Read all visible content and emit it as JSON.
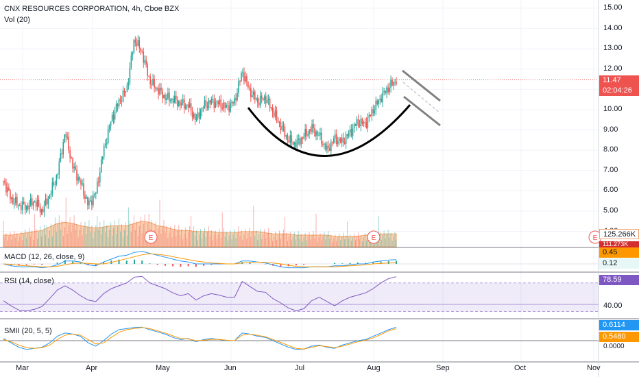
{
  "header": {
    "title": "CNX RESOURCES CORPORATION, 4h, Cboe BZX",
    "volume_label": "Vol (20)"
  },
  "price_axis": {
    "ticks": [
      "15.00",
      "14.00",
      "13.00",
      "12.00",
      "11.00",
      "10.00",
      "9.00",
      "8.00",
      "7.00",
      "6.00",
      "5.00",
      "4.00"
    ]
  },
  "tags": {
    "last_price": "11.47",
    "countdown": "02:04:26",
    "volume_value": "125.266K",
    "volume_ma": "111.273K",
    "macd_value": "0.45",
    "macd_signal": "0.12",
    "rsi_value": "78.59",
    "smii_value": "0.6114",
    "smii_signal": "0.5480"
  },
  "indicators": {
    "macd_label": "MACD (12, 26, close, 9)",
    "rsi_label": "RSI (14, close)",
    "rsi_tick": "40.00",
    "smii_label": "SMII (20, 5, 5)",
    "smii_tick": "0.0000"
  },
  "time_axis": {
    "labels": [
      "Mar",
      "Apr",
      "May",
      "Jun",
      "Jul",
      "Aug",
      "Sep",
      "Oct",
      "Nov"
    ]
  },
  "events": [
    "E",
    "E",
    "E"
  ],
  "colors": {
    "up": "#26a69a",
    "down": "#ef5350",
    "macd": "#2196f3",
    "signal": "#ff9800",
    "rsi": "#7e57c2",
    "price_line": "#ef5350"
  },
  "chart_data": {
    "type": "candlestick",
    "title": "CNX RESOURCES CORPORATION, 4h, Cboe BZX",
    "ylim": [
      4.0,
      15.0
    ],
    "x_range": [
      "Mar",
      "Nov"
    ],
    "last_price": 11.47,
    "close_series": [
      {
        "date": "Feb 24",
        "close": 6.5
      },
      {
        "date": "Feb 28",
        "close": 5.6
      },
      {
        "date": "Mar 3",
        "close": 5.3
      },
      {
        "date": "Mar 7",
        "close": 5.2
      },
      {
        "date": "Mar 10",
        "close": 5.5
      },
      {
        "date": "Mar 13",
        "close": 5.0
      },
      {
        "date": "Mar 16",
        "close": 5.8
      },
      {
        "date": "Mar 19",
        "close": 6.8
      },
      {
        "date": "Mar 21",
        "close": 8.9
      },
      {
        "date": "Mar 24",
        "close": 7.2
      },
      {
        "date": "Mar 26",
        "close": 6.4
      },
      {
        "date": "Mar 29",
        "close": 5.3
      },
      {
        "date": "Apr 1",
        "close": 5.9
      },
      {
        "date": "Apr 4",
        "close": 8.0
      },
      {
        "date": "Apr 8",
        "close": 9.5
      },
      {
        "date": "Apr 11",
        "close": 10.4
      },
      {
        "date": "Apr 14",
        "close": 11.0
      },
      {
        "date": "Apr 17",
        "close": 13.5
      },
      {
        "date": "Apr 19",
        "close": 12.8
      },
      {
        "date": "Apr 21",
        "close": 11.4
      },
      {
        "date": "Apr 23",
        "close": 11.0
      },
      {
        "date": "Apr 28",
        "close": 10.6
      },
      {
        "date": "May 1",
        "close": 10.5
      },
      {
        "date": "May 5",
        "close": 10.3
      },
      {
        "date": "May 11",
        "close": 10.2
      },
      {
        "date": "May 14",
        "close": 9.5
      },
      {
        "date": "May 18",
        "close": 10.2
      },
      {
        "date": "May 22",
        "close": 10.4
      },
      {
        "date": "May 26",
        "close": 10.3
      },
      {
        "date": "May 30",
        "close": 10.1
      },
      {
        "date": "Jun 3",
        "close": 10.4
      },
      {
        "date": "Jun 7",
        "close": 11.9
      },
      {
        "date": "Jun 10",
        "close": 10.9
      },
      {
        "date": "Jun 14",
        "close": 10.4
      },
      {
        "date": "Jun 18",
        "close": 10.6
      },
      {
        "date": "Jun 21",
        "close": 9.9
      },
      {
        "date": "Jun 24",
        "close": 9.2
      },
      {
        "date": "Jun 28",
        "close": 8.5
      },
      {
        "date": "Jul 2",
        "close": 8.3
      },
      {
        "date": "Jul 6",
        "close": 8.7
      },
      {
        "date": "Jul 9",
        "close": 9.1
      },
      {
        "date": "Jul 12",
        "close": 8.7
      },
      {
        "date": "Jul 14",
        "close": 8.0
      },
      {
        "date": "Jul 18",
        "close": 8.6
      },
      {
        "date": "Jul 22",
        "close": 8.4
      },
      {
        "date": "Jul 25",
        "close": 8.9
      },
      {
        "date": "Jul 28",
        "close": 9.4
      },
      {
        "date": "Jul 31",
        "close": 9.3
      },
      {
        "date": "Aug 3",
        "close": 10.0
      },
      {
        "date": "Aug 6",
        "close": 10.6
      },
      {
        "date": "Aug 8",
        "close": 11.1
      },
      {
        "date": "Aug 9",
        "close": 11.47
      }
    ],
    "volume_ma_series": [
      1.0,
      1.0,
      1.1,
      1.2,
      1.3,
      1.4,
      1.7,
      2.0,
      2.1,
      2.0,
      1.8,
      1.7,
      1.6,
      1.7,
      1.8,
      1.8,
      1.8,
      2.0,
      2.2,
      2.1,
      1.8,
      1.7,
      1.5,
      1.4,
      1.4,
      1.3,
      1.3,
      1.3,
      1.2,
      1.2,
      1.2,
      1.3,
      1.3,
      1.3,
      1.2,
      1.1,
      1.1,
      1.1,
      1.0,
      1.0,
      1.0,
      1.0,
      1.0,
      0.9,
      0.9,
      0.9,
      0.9,
      1.0,
      1.0,
      1.1,
      1.1,
      1.1
    ],
    "macd_series": [
      0.0,
      -0.2,
      -0.3,
      -0.3,
      -0.3,
      -0.4,
      -0.3,
      -0.1,
      0.3,
      0.3,
      0.2,
      -0.1,
      -0.2,
      0.2,
      0.5,
      0.8,
      0.9,
      1.2,
      1.3,
      1.1,
      0.9,
      0.7,
      0.5,
      0.3,
      0.2,
      0.0,
      0.0,
      0.0,
      0.0,
      0.0,
      0.0,
      0.3,
      0.3,
      0.2,
      0.1,
      -0.1,
      -0.3,
      -0.4,
      -0.4,
      -0.4,
      -0.3,
      -0.3,
      -0.3,
      -0.2,
      -0.2,
      -0.1,
      0.0,
      0.0,
      0.2,
      0.3,
      0.4,
      0.45
    ],
    "macd_signal_series": [
      0.0,
      -0.05,
      -0.15,
      -0.2,
      -0.25,
      -0.3,
      -0.3,
      -0.25,
      -0.1,
      0.05,
      0.1,
      0.05,
      0.0,
      0.0,
      0.15,
      0.35,
      0.55,
      0.75,
      0.95,
      1.05,
      1.0,
      0.9,
      0.75,
      0.6,
      0.45,
      0.3,
      0.2,
      0.1,
      0.05,
      0.0,
      0.0,
      0.1,
      0.15,
      0.2,
      0.15,
      0.1,
      0.0,
      -0.15,
      -0.25,
      -0.3,
      -0.3,
      -0.3,
      -0.3,
      -0.3,
      -0.25,
      -0.2,
      -0.15,
      -0.1,
      0.0,
      0.05,
      0.1,
      0.12
    ],
    "rsi_series": [
      45,
      38,
      32,
      31,
      33,
      37,
      48,
      60,
      66,
      60,
      52,
      46,
      44,
      55,
      62,
      66,
      70,
      78,
      79,
      70,
      66,
      62,
      56,
      52,
      55,
      46,
      52,
      55,
      53,
      50,
      50,
      72,
      65,
      58,
      57,
      48,
      42,
      35,
      31,
      34,
      45,
      50,
      44,
      38,
      45,
      50,
      53,
      56,
      62,
      70,
      76,
      78.59
    ],
    "rsi_levels": [
      70,
      40,
      30
    ],
    "smii_series": [
      0.1,
      -0.1,
      -0.3,
      -0.4,
      -0.35,
      -0.3,
      -0.1,
      0.2,
      0.35,
      0.3,
      0.2,
      -0.1,
      -0.25,
      0.0,
      0.3,
      0.5,
      0.55,
      0.6,
      0.62,
      0.5,
      0.4,
      0.3,
      0.15,
      0.05,
      0.1,
      -0.05,
      0.05,
      0.1,
      0.05,
      0.0,
      0.0,
      0.35,
      0.3,
      0.2,
      0.15,
      0.0,
      -0.15,
      -0.3,
      -0.4,
      -0.38,
      -0.25,
      -0.2,
      -0.3,
      -0.35,
      -0.2,
      -0.1,
      0.0,
      0.05,
      0.2,
      0.35,
      0.5,
      0.6114
    ],
    "smii_signal_series": [
      0.05,
      -0.05,
      -0.2,
      -0.32,
      -0.35,
      -0.32,
      -0.2,
      0.05,
      0.25,
      0.3,
      0.25,
      0.05,
      -0.15,
      -0.1,
      0.15,
      0.38,
      0.5,
      0.56,
      0.6,
      0.55,
      0.45,
      0.35,
      0.22,
      0.1,
      0.08,
      0.0,
      0.02,
      0.06,
      0.06,
      0.02,
      0.0,
      0.25,
      0.3,
      0.24,
      0.18,
      0.05,
      -0.08,
      -0.22,
      -0.35,
      -0.38,
      -0.3,
      -0.23,
      -0.27,
      -0.32,
      -0.25,
      -0.15,
      -0.05,
      0.02,
      0.13,
      0.28,
      0.45,
      0.548
    ],
    "drawings": [
      {
        "type": "cup_arc",
        "from": "Jun 3",
        "to": "Aug 12",
        "bottom_price": 7.3
      },
      {
        "type": "channel",
        "from": "Aug 9",
        "to": "Sep 2",
        "upper": [
          11.9,
          10.4
        ],
        "lower": [
          10.6,
          9.2
        ]
      }
    ]
  }
}
